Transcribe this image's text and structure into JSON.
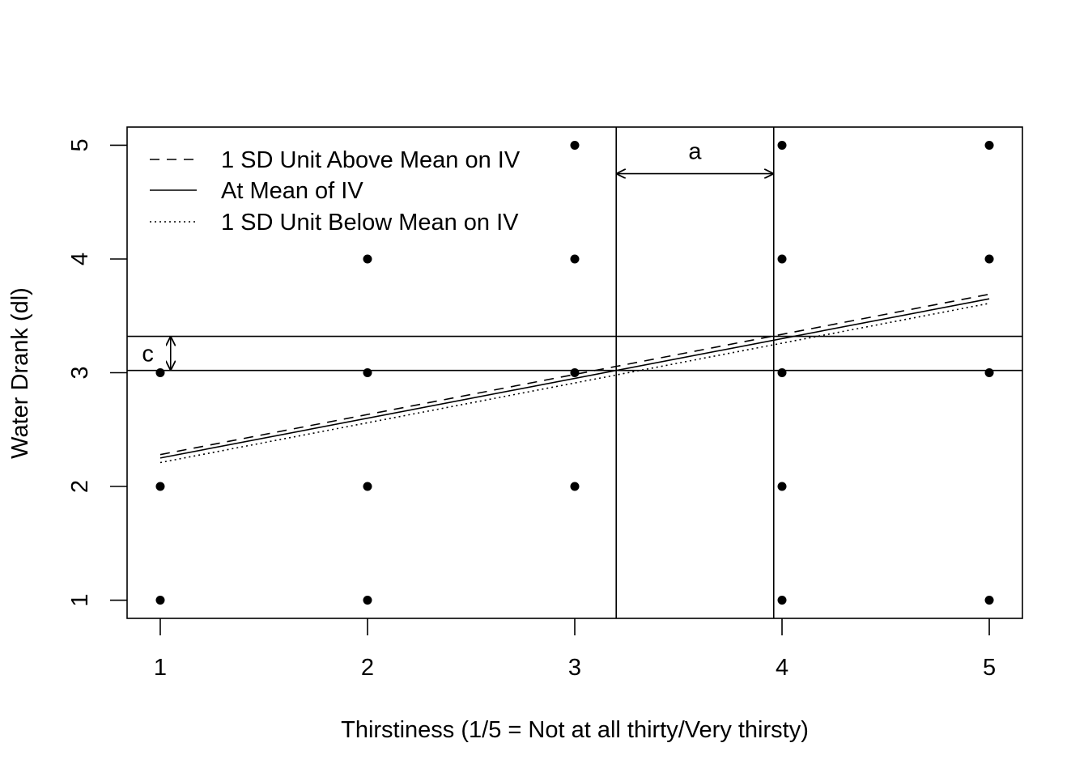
{
  "chart_data": {
    "type": "scatter",
    "title": "",
    "xlabel": "Thirstiness (1/5 = Not at all thirty/Very thirsty)",
    "ylabel": "Water Drank (dl)",
    "xlim": [
      0.84,
      5.16
    ],
    "ylim": [
      0.84,
      5.16
    ],
    "x_ticks": [
      "1",
      "2",
      "3",
      "4",
      "5"
    ],
    "y_ticks": [
      "1",
      "2",
      "3",
      "4",
      "5"
    ],
    "grid": false,
    "legend_position": "top-left",
    "points": [
      {
        "x": 1,
        "y": 1
      },
      {
        "x": 1,
        "y": 2
      },
      {
        "x": 1,
        "y": 3
      },
      {
        "x": 2,
        "y": 1
      },
      {
        "x": 2,
        "y": 2
      },
      {
        "x": 2,
        "y": 3
      },
      {
        "x": 2,
        "y": 4
      },
      {
        "x": 3,
        "y": 2
      },
      {
        "x": 3,
        "y": 3
      },
      {
        "x": 3,
        "y": 4
      },
      {
        "x": 3,
        "y": 5
      },
      {
        "x": 4,
        "y": 1
      },
      {
        "x": 4,
        "y": 2
      },
      {
        "x": 4,
        "y": 3
      },
      {
        "x": 4,
        "y": 4
      },
      {
        "x": 4,
        "y": 5
      },
      {
        "x": 5,
        "y": 1
      },
      {
        "x": 5,
        "y": 3
      },
      {
        "x": 5,
        "y": 4
      },
      {
        "x": 5,
        "y": 5
      }
    ],
    "series": [
      {
        "name": "1 SD Unit Above Mean on IV",
        "line_style": "dashed",
        "x": [
          1,
          5
        ],
        "y": [
          2.28,
          3.69
        ]
      },
      {
        "name": "At Mean of IV",
        "line_style": "solid",
        "x": [
          1,
          5
        ],
        "y": [
          2.25,
          3.65
        ]
      },
      {
        "name": "1 SD Unit Below Mean on IV",
        "line_style": "dotted",
        "x": [
          1,
          5
        ],
        "y": [
          2.21,
          3.61
        ]
      }
    ],
    "reference_lines": {
      "vertical_x": [
        3.2,
        3.96
      ],
      "horizontal_y": [
        3.02,
        3.32
      ]
    },
    "annotations": [
      {
        "label": "a",
        "type": "horizontal-arrow",
        "x_from": 3.2,
        "x_to": 3.96,
        "y": 4.75,
        "label_x": 3.58,
        "label_y": 4.95
      },
      {
        "label": "c",
        "type": "vertical-arrow",
        "x": 1.05,
        "y_from": 3.02,
        "y_to": 3.32,
        "label_x": 0.94,
        "label_y": 3.17
      }
    ],
    "colors": {
      "foreground": "#000000",
      "background": "#ffffff"
    }
  }
}
